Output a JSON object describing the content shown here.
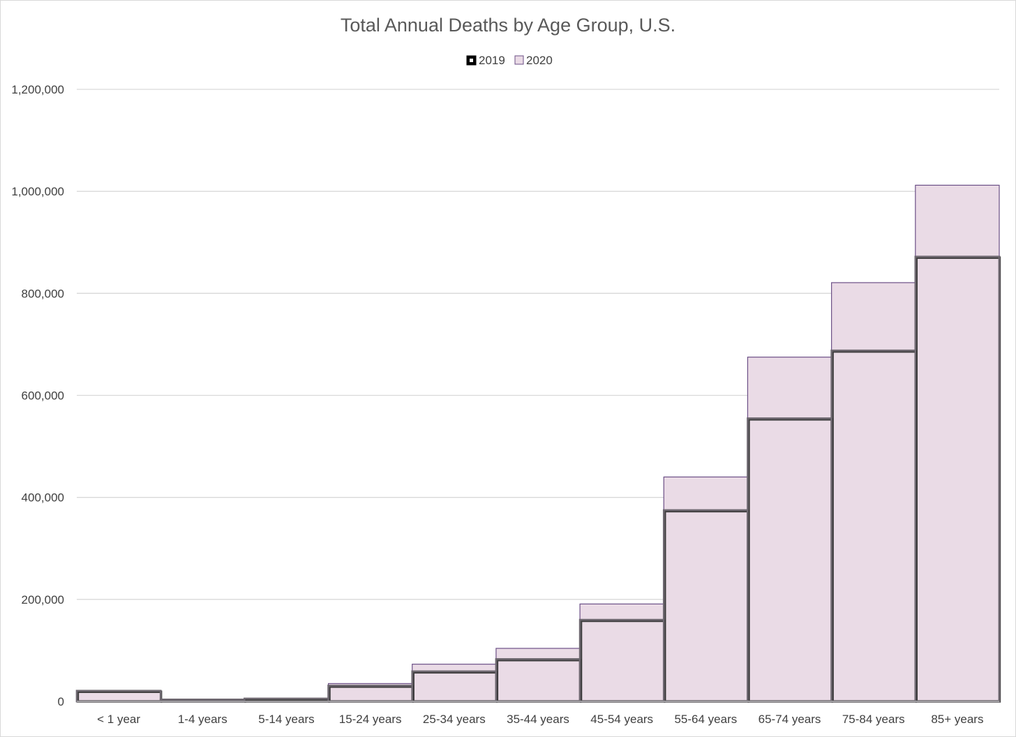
{
  "chart_data": {
    "type": "bar",
    "title": "Total Annual Deaths by Age Group, U.S.",
    "xlabel": "",
    "ylabel": "",
    "categories": [
      "< 1 year",
      "1-4 years",
      "5-14 years",
      "15-24 years",
      "25-34 years",
      "35-44 years",
      "45-54 years",
      "55-64 years",
      "65-74 years",
      "75-84 years",
      "85+ years"
    ],
    "series": [
      {
        "name": "2019",
        "values": [
          20900,
          3700,
          5600,
          31000,
          59000,
          83000,
          160000,
          375000,
          555000,
          688000,
          872000
        ],
        "color": "#000000",
        "style": "outline"
      },
      {
        "name": "2020",
        "values": [
          19600,
          3500,
          5600,
          35000,
          73000,
          104000,
          191000,
          440000,
          675000,
          821000,
          1012000
        ],
        "color": "#eadbe6",
        "edge": "#6b4f86",
        "style": "filled"
      }
    ],
    "ylim": [
      0,
      1200000
    ],
    "yticks": [
      0,
      200000,
      400000,
      600000,
      800000,
      1000000,
      1200000
    ],
    "ytick_labels": [
      "0",
      "200,000",
      "400,000",
      "600,000",
      "800,000",
      "1,000,000",
      "1,200,000"
    ],
    "grid": true,
    "legend_position": "top-center"
  }
}
